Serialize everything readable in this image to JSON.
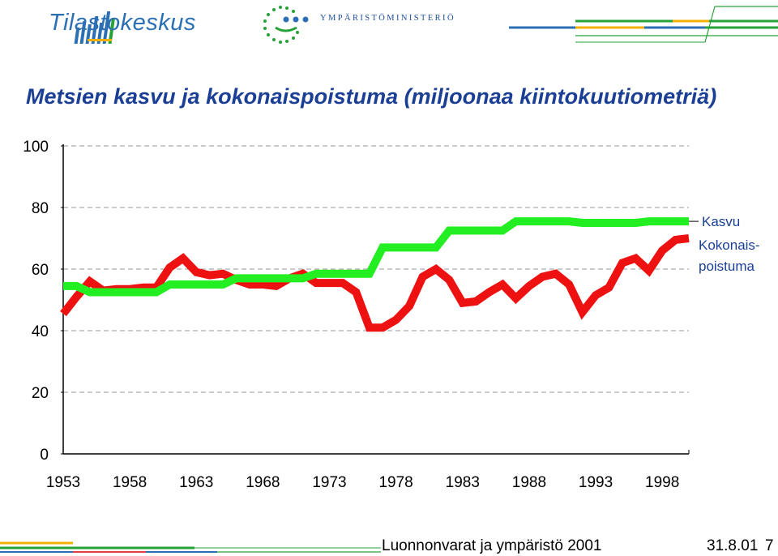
{
  "header": {
    "brand": "Tilastokeskus",
    "ministry": "YMPÄRISTÖMINISTERIÖ",
    "accent_colors": [
      "#2b6fb5",
      "#27a23a",
      "#f2b100",
      "#e04040"
    ]
  },
  "footer": {
    "title": "Luonnonvarat ja ympäristö 2001",
    "date": "31.8.01",
    "page": "7"
  },
  "chart_data": {
    "type": "line",
    "title": "Metsien kasvu ja kokonaispoistuma (miljoonaa kiintokuutiometriä)",
    "xlabel": "",
    "ylabel": "",
    "xlim": [
      1953,
      2000
    ],
    "ylim": [
      0,
      100
    ],
    "y_ticks": [
      0,
      20,
      40,
      60,
      80,
      100
    ],
    "x_ticks": [
      1953,
      1958,
      1963,
      1968,
      1973,
      1978,
      1983,
      1988,
      1993,
      1998
    ],
    "grid": "horizontal-dashed",
    "legend": "right",
    "series": [
      {
        "name": "Kasvu",
        "color": "#22ee22",
        "x": [
          1953,
          1954,
          1955,
          1956,
          1957,
          1958,
          1959,
          1960,
          1961,
          1962,
          1963,
          1964,
          1965,
          1966,
          1967,
          1968,
          1969,
          1970,
          1971,
          1972,
          1973,
          1974,
          1975,
          1976,
          1977,
          1978,
          1979,
          1980,
          1981,
          1982,
          1983,
          1984,
          1985,
          1986,
          1987,
          1988,
          1989,
          1990,
          1991,
          1992,
          1993,
          1994,
          1995,
          1996,
          1997,
          1998,
          1999,
          2000
        ],
        "values": [
          54.5,
          54.5,
          52.5,
          52.5,
          52.5,
          52.5,
          52.5,
          52.5,
          55,
          55,
          55,
          55,
          55,
          57,
          57,
          57,
          57,
          57,
          57,
          58.5,
          58.5,
          58.5,
          58.5,
          58.5,
          67,
          67,
          67,
          67,
          67,
          72.5,
          72.5,
          72.5,
          72.5,
          72.5,
          75.5,
          75.5,
          75.5,
          75.5,
          75.5,
          75,
          75,
          75,
          75,
          75,
          75.5,
          75.5,
          75.5,
          75.5
        ]
      },
      {
        "name": "Kokonais-\npoistuma",
        "color": "#ee1111",
        "x": [
          1953,
          1954,
          1955,
          1956,
          1957,
          1958,
          1959,
          1960,
          1961,
          1962,
          1963,
          1964,
          1965,
          1966,
          1967,
          1968,
          1969,
          1970,
          1971,
          1972,
          1973,
          1974,
          1975,
          1976,
          1977,
          1978,
          1979,
          1980,
          1981,
          1982,
          1983,
          1984,
          1985,
          1986,
          1987,
          1988,
          1989,
          1990,
          1991,
          1992,
          1993,
          1994,
          1995,
          1996,
          1997,
          1998,
          1999,
          2000
        ],
        "values": [
          45.5,
          51,
          56,
          53,
          53.5,
          53.5,
          54,
          54,
          60.5,
          63.5,
          59,
          58,
          58.5,
          56.5,
          55,
          55,
          54.5,
          57,
          58.5,
          55.5,
          55.5,
          55.5,
          52.5,
          41,
          41,
          43.5,
          48,
          57.5,
          60,
          56.5,
          49,
          49.5,
          52.5,
          55,
          50.5,
          54.5,
          57.5,
          58.5,
          55,
          46,
          51.5,
          54,
          62,
          63.5,
          59.5,
          66,
          69.5,
          70
        ]
      }
    ],
    "legend_labels": [
      "Kasvu",
      "Kokonais-",
      "poistuma"
    ]
  }
}
